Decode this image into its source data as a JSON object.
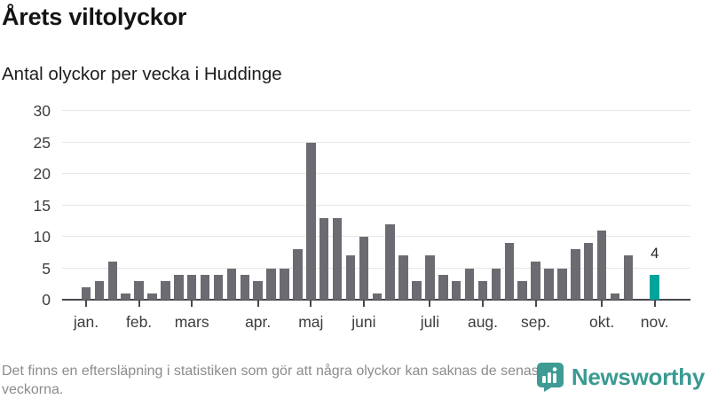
{
  "header": {
    "title": "Årets viltolyckor",
    "subtitle": "Antal olyckor per vecka i Huddinge"
  },
  "chart_data": {
    "type": "bar",
    "title": "Årets viltolyckor",
    "subtitle": "Antal olyckor per vecka i Huddinge",
    "unit": "olyckor per vecka",
    "values": [
      2,
      3,
      6,
      1,
      3,
      1,
      3,
      4,
      4,
      4,
      4,
      5,
      4,
      3,
      5,
      5,
      8,
      25,
      13,
      13,
      7,
      10,
      1,
      12,
      7,
      3,
      7,
      4,
      3,
      5,
      3,
      5,
      9,
      3,
      6,
      5,
      5,
      8,
      9,
      11,
      1,
      7,
      null,
      4
    ],
    "months": [
      {
        "label": "jan.",
        "week": 0
      },
      {
        "label": "feb.",
        "week": 4
      },
      {
        "label": "mars",
        "week": 8
      },
      {
        "label": "apr.",
        "week": 13
      },
      {
        "label": "maj",
        "week": 17
      },
      {
        "label": "juni",
        "week": 21
      },
      {
        "label": "juli",
        "week": 26
      },
      {
        "label": "aug.",
        "week": 30
      },
      {
        "label": "sep.",
        "week": 34
      },
      {
        "label": "okt.",
        "week": 39
      },
      {
        "label": "nov.",
        "week": 43
      }
    ],
    "yticks": [
      0,
      5,
      10,
      15,
      20,
      25,
      30
    ],
    "ylim": [
      0,
      30
    ],
    "grid": true,
    "bar_color": "#6c6b71",
    "highlight_color": "#00a49a",
    "highlight_index": 43,
    "highlight_label": "4"
  },
  "footer": {
    "note": "Det finns en eftersläpning i statistiken som gör att några olyckor kan saknas de senaste veckorna.",
    "brand": "Newsworthy",
    "brand_color": "#3a9a92"
  }
}
